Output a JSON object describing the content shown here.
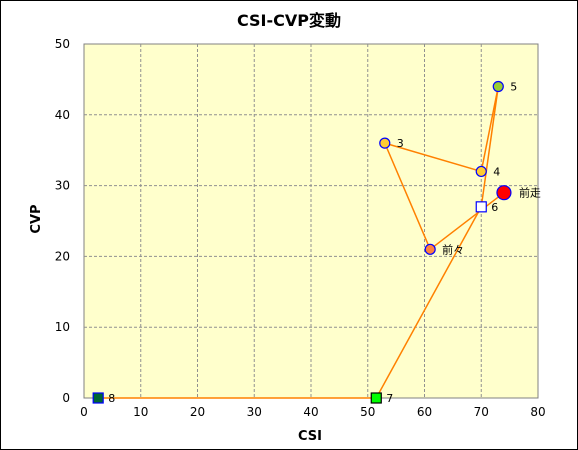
{
  "chart_data": {
    "type": "scatter",
    "title": "CSI-CVP変動",
    "xlabel": "CSI",
    "ylabel": "CVP",
    "xlim": [
      0,
      80
    ],
    "ylim": [
      0,
      50
    ],
    "xticks": [
      0,
      10,
      20,
      30,
      40,
      50,
      60,
      70,
      80
    ],
    "yticks": [
      0,
      10,
      20,
      30,
      40,
      50
    ],
    "grid": true,
    "plot_background": "#ffffcc",
    "line_color": "#ff8000",
    "points": [
      {
        "label": "前走",
        "x": 74,
        "y": 29,
        "marker": "circle-large",
        "fill": "#ff0000",
        "stroke": "#0000ff"
      },
      {
        "label": "前々",
        "x": 61,
        "y": 21,
        "marker": "circle",
        "fill": "#ff8040",
        "stroke": "#0000ff"
      },
      {
        "label": "3",
        "x": 53,
        "y": 36,
        "marker": "circle",
        "fill": "#ffcc33",
        "stroke": "#0000ff"
      },
      {
        "label": "4",
        "x": 70,
        "y": 32,
        "marker": "circle",
        "fill": "#ffcc33",
        "stroke": "#0000ff"
      },
      {
        "label": "5",
        "x": 73,
        "y": 44,
        "marker": "circle",
        "fill": "#99cc33",
        "stroke": "#0000ff"
      },
      {
        "label": "6",
        "x": 70,
        "y": 27,
        "marker": "square",
        "fill": "#ffffff",
        "stroke": "#0000ff"
      },
      {
        "label": "7",
        "x": 51.5,
        "y": 0,
        "marker": "square",
        "fill": "#00ff00",
        "stroke": "#000000"
      },
      {
        "label": "8",
        "x": 2.5,
        "y": 0,
        "marker": "square",
        "fill": "#006633",
        "stroke": "#0000ff"
      }
    ],
    "path_order": [
      "8",
      "7",
      "6",
      "5",
      "4",
      "3",
      "前々",
      "前走"
    ]
  }
}
